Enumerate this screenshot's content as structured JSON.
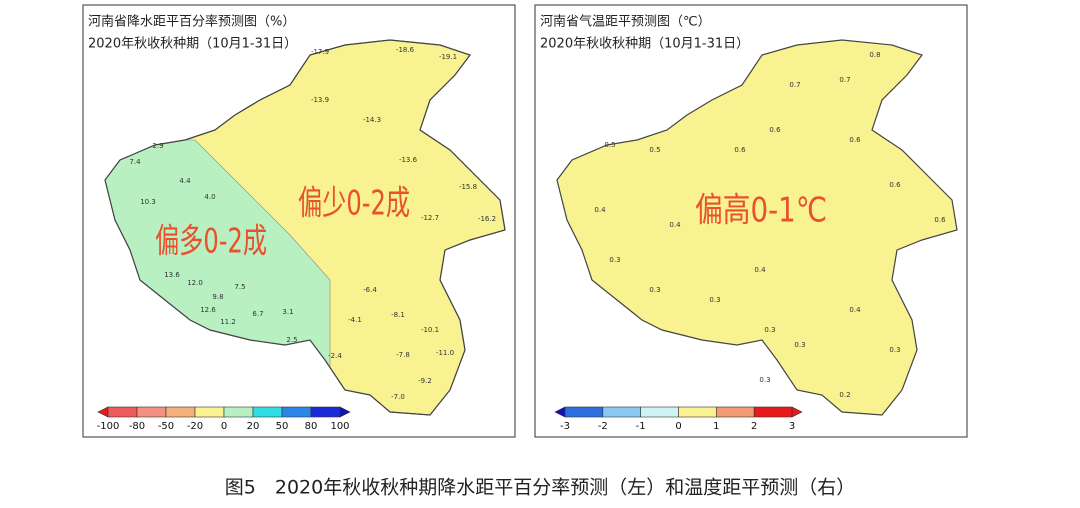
{
  "left_panel": {
    "title": "河南省降水距平百分率预测图（%）",
    "subtitle": "2020年秋收秋种期（10月1-31日）",
    "region_labels": [
      "偏少0-2成",
      "偏多0-2成"
    ],
    "stations": [
      "-17.9",
      "-18.6",
      "-19.1",
      "-13.9",
      "-14.3",
      "-13.6",
      "-15.8",
      "-16.2",
      "-12.7",
      "-11.0",
      "-9.2",
      "-7.0",
      "-10.1",
      "-7.8",
      "-8.1",
      "-6.4",
      "-4.1",
      "-2.4",
      "7.4",
      "2.9",
      "10.3",
      "4.4",
      "4.0",
      "13.6",
      "12.0",
      "9.8",
      "7.5",
      "12.6",
      "11.2",
      "6.7",
      "3.1",
      "2.5"
    ],
    "colorbar_ticks": [
      -100,
      -80,
      -50,
      -20,
      0,
      20,
      50,
      80,
      100
    ]
  },
  "right_panel": {
    "title": "河南省气温距平预测图（℃）",
    "subtitle": "2020年秋收秋种期（10月1-31日）",
    "region_labels": [
      "偏高0-1℃"
    ],
    "stations": [
      "0.8",
      "0.7",
      "0.7",
      "0.6",
      "0.6",
      "0.5",
      "0.5",
      "0.6",
      "0.6",
      "0.4",
      "0.4",
      "0.3",
      "0.3",
      "0.4",
      "0.3",
      "0.3",
      "0.3",
      "0.4",
      "0.3",
      "0.2",
      "0.3",
      "0.6"
    ],
    "colorbar_ticks": [
      -3,
      -2,
      -1,
      0,
      1,
      2,
      3
    ]
  },
  "caption": "图5　2020年秋收秋种期降水距平百分率预测（左）和温度距平预测（右）"
}
